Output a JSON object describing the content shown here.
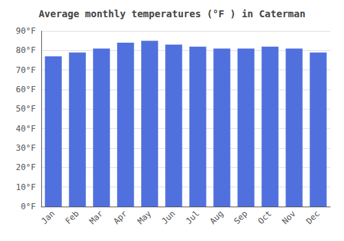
{
  "chart_data": {
    "type": "bar",
    "title": "Average monthly temperatures (°F ) in Caterman",
    "categories": [
      "Jan",
      "Feb",
      "Mar",
      "Apr",
      "May",
      "Jun",
      "Jul",
      "Aug",
      "Sep",
      "Oct",
      "Nov",
      "Dec"
    ],
    "values": [
      77.0,
      79.0,
      81.0,
      84.0,
      85.0,
      83.0,
      82.0,
      81.0,
      81.0,
      82.0,
      81.0,
      79.0
    ],
    "ylim": [
      0,
      90
    ],
    "yticks": [
      {
        "value": 0,
        "label": "0°F"
      },
      {
        "value": 10,
        "label": "10°F"
      },
      {
        "value": 20,
        "label": "20°F"
      },
      {
        "value": 30,
        "label": "30°F"
      },
      {
        "value": 40,
        "label": "40°F"
      },
      {
        "value": 50,
        "label": "50°F"
      },
      {
        "value": 60,
        "label": "60°F"
      },
      {
        "value": 70,
        "label": "70°F"
      },
      {
        "value": 80,
        "label": "80°F"
      },
      {
        "value": 90,
        "label": "90°F"
      }
    ],
    "grid": true
  }
}
